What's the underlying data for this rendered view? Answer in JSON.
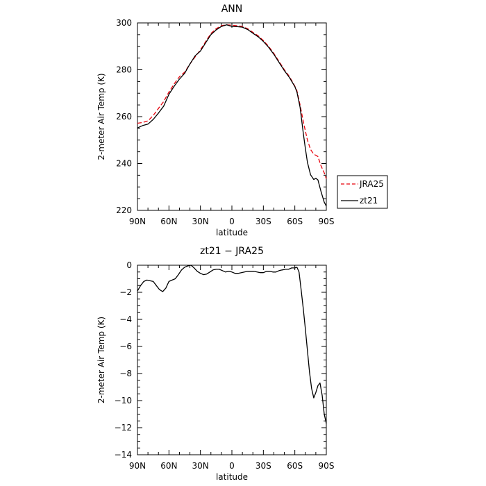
{
  "chart_data": [
    {
      "type": "line",
      "title": "ANN",
      "xlabel": "latitude",
      "ylabel": "2-meter Air Temp (K)",
      "xlim": [
        90,
        -90
      ],
      "ylim": [
        220,
        300
      ],
      "x_ticks": [
        90,
        60,
        30,
        0,
        -30,
        -60,
        -90
      ],
      "x_tick_labels": [
        "90N",
        "60N",
        "30N",
        "0",
        "30S",
        "60S",
        "90S"
      ],
      "y_ticks": [
        220,
        240,
        260,
        280,
        300
      ],
      "y_tick_labels": [
        "220",
        "240",
        "260",
        "280",
        "300"
      ],
      "legend": "right",
      "series": [
        {
          "name": "JRA25",
          "color": "#e8000b",
          "dash": "dashed",
          "x": [
            90,
            85,
            80,
            75,
            70,
            65,
            60,
            55,
            50,
            45,
            40,
            35,
            30,
            25,
            20,
            15,
            10,
            5,
            0,
            -5,
            -10,
            -15,
            -20,
            -25,
            -30,
            -35,
            -40,
            -45,
            -50,
            -55,
            -60,
            -62,
            -65,
            -68,
            -70,
            -72,
            -75,
            -78,
            -80,
            -82,
            -85,
            -88,
            -90
          ],
          "y": [
            257.2,
            257.5,
            258.2,
            260.5,
            263.5,
            266.5,
            270.5,
            274,
            277,
            279,
            282.5,
            285.5,
            288.5,
            292,
            295.5,
            297.5,
            298.8,
            299.2,
            299,
            298.8,
            298.5,
            297.5,
            296,
            294.5,
            292.5,
            290,
            287,
            283.5,
            280,
            277,
            273,
            271,
            265,
            258,
            254,
            250,
            246,
            244,
            243.5,
            243,
            239,
            236,
            233.5
          ]
        },
        {
          "name": "zt21",
          "color": "#000000",
          "dash": "solid",
          "x": [
            90,
            85,
            80,
            75,
            70,
            65,
            60,
            55,
            50,
            45,
            40,
            35,
            30,
            25,
            20,
            15,
            10,
            5,
            0,
            -5,
            -10,
            -15,
            -20,
            -25,
            -30,
            -35,
            -40,
            -45,
            -50,
            -55,
            -60,
            -62,
            -65,
            -68,
            -70,
            -72,
            -75,
            -78,
            -80,
            -82,
            -85,
            -88,
            -90
          ],
          "y": [
            255.2,
            256.2,
            256.8,
            258.8,
            261.5,
            264.5,
            269.5,
            273,
            276,
            278.5,
            282.5,
            286,
            288,
            291.5,
            295,
            297,
            298.5,
            299.2,
            298.5,
            298.4,
            298.2,
            297.2,
            295.6,
            294.1,
            292.1,
            289.6,
            286.6,
            283.1,
            279.6,
            276.6,
            272.8,
            270.5,
            264,
            253,
            246.5,
            240.5,
            235.2,
            233.2,
            233.7,
            233,
            228,
            223.5,
            221.8
          ]
        }
      ]
    },
    {
      "type": "line",
      "title": "zt21 − JRA25",
      "xlabel": "latitude",
      "ylabel": "2-meter Air Temp (K)",
      "xlim": [
        90,
        -90
      ],
      "ylim": [
        -14,
        0
      ],
      "x_ticks": [
        90,
        60,
        30,
        0,
        -30,
        -60,
        -90
      ],
      "x_tick_labels": [
        "90N",
        "60N",
        "30N",
        "0",
        "30S",
        "60S",
        "90S"
      ],
      "y_ticks": [
        -14,
        -12,
        -10,
        -8,
        -6,
        -4,
        -2,
        0
      ],
      "y_tick_labels": [
        "−14",
        "−12",
        "−10",
        "−8",
        "−6",
        "−4",
        "−2",
        "0"
      ],
      "series": [
        {
          "name": "zt21 − JRA25",
          "color": "#000000",
          "dash": "solid",
          "x": [
            90,
            87,
            84,
            81,
            78,
            75,
            72,
            69,
            66,
            63,
            60,
            57,
            54,
            51,
            48,
            45,
            42,
            39,
            36,
            33,
            30,
            27,
            24,
            21,
            18,
            15,
            12,
            9,
            6,
            3,
            0,
            -3,
            -6,
            -9,
            -12,
            -15,
            -18,
            -21,
            -24,
            -27,
            -30,
            -33,
            -36,
            -39,
            -42,
            -45,
            -48,
            -51,
            -54,
            -57,
            -60,
            -62,
            -64,
            -66,
            -68,
            -70,
            -72,
            -74,
            -76,
            -78,
            -80,
            -82,
            -84,
            -86,
            -88,
            -90
          ],
          "y": [
            -1.9,
            -1.5,
            -1.2,
            -1.1,
            -1.15,
            -1.2,
            -1.5,
            -1.8,
            -1.95,
            -1.7,
            -1.2,
            -1.1,
            -1.0,
            -0.7,
            -0.35,
            -0.15,
            -0.05,
            0,
            -0.2,
            -0.45,
            -0.6,
            -0.7,
            -0.65,
            -0.5,
            -0.35,
            -0.3,
            -0.3,
            -0.4,
            -0.5,
            -0.45,
            -0.5,
            -0.6,
            -0.6,
            -0.55,
            -0.5,
            -0.45,
            -0.45,
            -0.45,
            -0.5,
            -0.55,
            -0.55,
            -0.45,
            -0.45,
            -0.5,
            -0.5,
            -0.4,
            -0.35,
            -0.3,
            -0.3,
            -0.2,
            -0.2,
            -0.15,
            -0.5,
            -1.8,
            -3.2,
            -4.7,
            -6.3,
            -7.9,
            -9.1,
            -9.8,
            -9.4,
            -8.9,
            -8.7,
            -9.6,
            -11,
            -11.7
          ]
        }
      ]
    }
  ]
}
